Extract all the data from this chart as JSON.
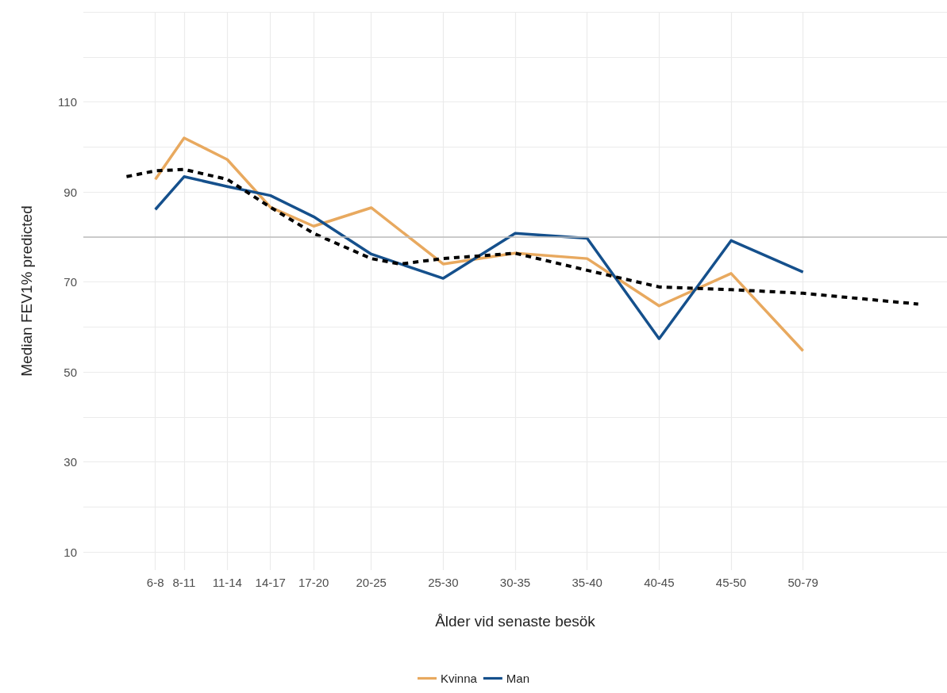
{
  "chart_data": {
    "type": "line",
    "xlabel": "Ålder vid senaste besök",
    "ylabel": "Median FEV1% predicted",
    "categories": [
      null,
      null,
      null,
      null,
      null,
      "6-8",
      null,
      "8-11",
      null,
      null,
      "11-14",
      null,
      null,
      "14-17",
      null,
      null,
      "17-20",
      null,
      null,
      null,
      "20-25",
      null,
      null,
      null,
      null,
      "25-30",
      null,
      null,
      null,
      null,
      "30-35",
      null,
      null,
      null,
      null,
      "35-40",
      null,
      null,
      null,
      null,
      "40-45",
      null,
      null,
      null,
      null,
      "45-50",
      null,
      null,
      null,
      null,
      "50-79",
      null,
      null,
      null,
      null,
      null,
      null,
      null,
      null,
      null,
      null
    ],
    "ylim": [
      6,
      130
    ],
    "yticks": [
      10,
      {
        "value": 20,
        "label": null
      },
      30,
      {
        "value": 40,
        "label": null
      },
      50,
      {
        "value": 60,
        "label": null
      },
      70,
      {
        "value": 80,
        "label": null
      },
      90,
      {
        "value": 100,
        "label": null
      },
      110,
      {
        "value": 120,
        "label": null
      },
      {
        "value": 130,
        "label": null
      }
    ],
    "grid": true,
    "legend": "bottom",
    "marker": "none",
    "series": [
      {
        "name": "Kvinna",
        "color": "#e8a95f",
        "values": [
          null,
          null,
          null,
          null,
          null,
          92.8,
          null,
          102,
          null,
          null,
          97.2,
          null,
          null,
          86.6,
          null,
          null,
          82.4,
          null,
          null,
          null,
          86.5,
          null,
          null,
          null,
          null,
          74,
          null,
          null,
          null,
          null,
          76.4,
          null,
          null,
          null,
          null,
          75.2,
          null,
          null,
          null,
          null,
          64.7,
          null,
          null,
          null,
          null,
          71.9,
          null,
          null,
          null,
          null,
          54.7,
          null,
          null,
          null,
          null,
          null,
          null,
          null,
          null,
          null,
          null
        ]
      },
      {
        "name": "Man",
        "color": "#15508c",
        "values": [
          null,
          null,
          null,
          null,
          null,
          86.1,
          null,
          93.4,
          null,
          null,
          91.2,
          null,
          null,
          89.2,
          null,
          null,
          84.5,
          null,
          null,
          null,
          76.2,
          null,
          null,
          null,
          null,
          70.8,
          null,
          null,
          null,
          null,
          80.8,
          null,
          null,
          null,
          null,
          79.7,
          null,
          null,
          null,
          null,
          57.4,
          null,
          null,
          null,
          null,
          79.2,
          null,
          null,
          null,
          null,
          72.2,
          null,
          null,
          null,
          null,
          null,
          null,
          null,
          null,
          null,
          null
        ]
      },
      {
        "color": "#000000",
        "line_style": "dashed",
        "values": [
          null,
          null,
          null,
          93.4,
          null,
          94.7,
          null,
          95,
          null,
          null,
          92.8,
          null,
          null,
          86.6,
          null,
          null,
          80.8,
          null,
          null,
          null,
          75.2,
          null,
          74,
          null,
          null,
          75.2,
          null,
          null,
          null,
          null,
          76.4,
          null,
          null,
          null,
          null,
          72.6,
          null,
          null,
          null,
          null,
          68.9,
          null,
          null,
          null,
          null,
          68.3,
          null,
          null,
          null,
          null,
          67.5,
          null,
          null,
          null,
          null,
          null,
          null,
          null,
          65.1,
          null,
          null
        ]
      }
    ],
    "ref_lines": [
      {
        "axis": "y",
        "value": 80,
        "color": "#bdbdbd"
      }
    ]
  }
}
